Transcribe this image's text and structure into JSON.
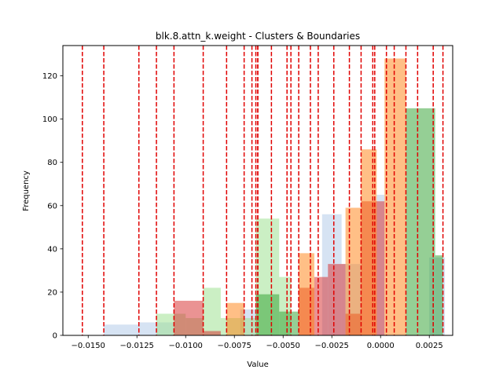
{
  "chart_data": {
    "type": "bar",
    "title": "blk.8.attn_k.weight - Clusters & Boundaries",
    "xlabel": "Value",
    "ylabel": "Frequency",
    "xlim": [
      -0.0163,
      0.0037
    ],
    "ylim": [
      0,
      134
    ],
    "x_ticks": [
      {
        "value": -0.015,
        "label": "−0.0150"
      },
      {
        "value": -0.0125,
        "label": "−0.0125"
      },
      {
        "value": -0.01,
        "label": "−0.0100"
      },
      {
        "value": -0.0075,
        "label": "−0.0075"
      },
      {
        "value": -0.005,
        "label": "−0.0050"
      },
      {
        "value": -0.0025,
        "label": "−0.0025"
      },
      {
        "value": 0.0,
        "label": "0.0000"
      },
      {
        "value": 0.0025,
        "label": "0.0025"
      }
    ],
    "y_ticks": [
      {
        "value": 0,
        "label": "0"
      },
      {
        "value": 20,
        "label": "20"
      },
      {
        "value": 40,
        "label": "40"
      },
      {
        "value": 60,
        "label": "60"
      },
      {
        "value": 80,
        "label": "80"
      },
      {
        "value": 100,
        "label": "100"
      },
      {
        "value": 120,
        "label": "120"
      }
    ],
    "series": [
      {
        "color": "#aec7e8",
        "opacity": 0.5,
        "bars": [
          {
            "x0": -0.0142,
            "x1": -0.0124,
            "y": 5
          },
          {
            "x0": -0.0124,
            "x1": -0.0106,
            "y": 6
          },
          {
            "x0": -0.0072,
            "x1": -0.0064,
            "y": 12
          },
          {
            "x0": -0.003,
            "x1": -0.002,
            "y": 56
          },
          {
            "x0": -0.002,
            "x1": -0.001,
            "y": 33
          },
          {
            "x0": -0.0002,
            "x1": 0.0002,
            "y": 65
          },
          {
            "x0": 0.0025,
            "x1": 0.0033,
            "y": 36
          }
        ]
      },
      {
        "color": "#98df8a",
        "opacity": 0.5,
        "bars": [
          {
            "x0": -0.0115,
            "x1": -0.01,
            "y": 10
          },
          {
            "x0": -0.01,
            "x1": -0.0091,
            "y": 8
          },
          {
            "x0": -0.0091,
            "x1": -0.0082,
            "y": 22
          },
          {
            "x0": -0.0082,
            "x1": -0.0064,
            "y": 8
          },
          {
            "x0": -0.0064,
            "x1": -0.0052,
            "y": 54
          },
          {
            "x0": -0.0052,
            "x1": -0.0046,
            "y": 27
          }
        ]
      },
      {
        "color": "#2ca02c",
        "opacity": 0.5,
        "bars": [
          {
            "x0": -0.0064,
            "x1": -0.0052,
            "y": 19
          },
          {
            "x0": -0.0052,
            "x1": -0.0042,
            "y": 11
          },
          {
            "x0": 0.0013,
            "x1": 0.0028,
            "y": 105
          },
          {
            "x0": 0.0028,
            "x1": 0.0032,
            "y": 37
          }
        ]
      },
      {
        "color": "#d62728",
        "opacity": 0.5,
        "bars": [
          {
            "x0": -0.0106,
            "x1": -0.0091,
            "y": 16
          },
          {
            "x0": -0.0091,
            "x1": -0.0082,
            "y": 2
          },
          {
            "x0": -0.0042,
            "x1": -0.0034,
            "y": 22
          },
          {
            "x0": -0.0034,
            "x1": -0.0027,
            "y": 27
          },
          {
            "x0": -0.0027,
            "x1": -0.0018,
            "y": 33
          },
          {
            "x0": -0.0018,
            "x1": -0.001,
            "y": 10
          },
          {
            "x0": -0.001,
            "x1": 0.0002,
            "y": 62
          }
        ]
      },
      {
        "color": "#ff7f0e",
        "opacity": 0.5,
        "bars": [
          {
            "x0": -0.0079,
            "x1": -0.007,
            "y": 15
          },
          {
            "x0": -0.0042,
            "x1": -0.0034,
            "y": 38
          },
          {
            "x0": -0.0018,
            "x1": -0.001,
            "y": 59
          },
          {
            "x0": -0.001,
            "x1": -0.0002,
            "y": 86
          },
          {
            "x0": 0.0002,
            "x1": 0.0013,
            "y": 128
          }
        ]
      }
    ],
    "boundaries": [
      -0.0153,
      -0.0142,
      -0.0124,
      -0.0115,
      -0.0106,
      -0.0091,
      -0.0079,
      -0.007,
      -0.0066,
      -0.0064,
      -0.0063,
      -0.0063,
      -0.0056,
      -0.0048,
      -0.0046,
      -0.0042,
      -0.0036,
      -0.0032,
      -0.0024,
      -0.0016,
      -0.001,
      -0.0004,
      -0.0003,
      0.0003,
      0.0007,
      0.0013,
      0.0019,
      0.0027,
      0.0032
    ],
    "boundary_color": "#e00000",
    "grid": false,
    "legend": "none"
  }
}
